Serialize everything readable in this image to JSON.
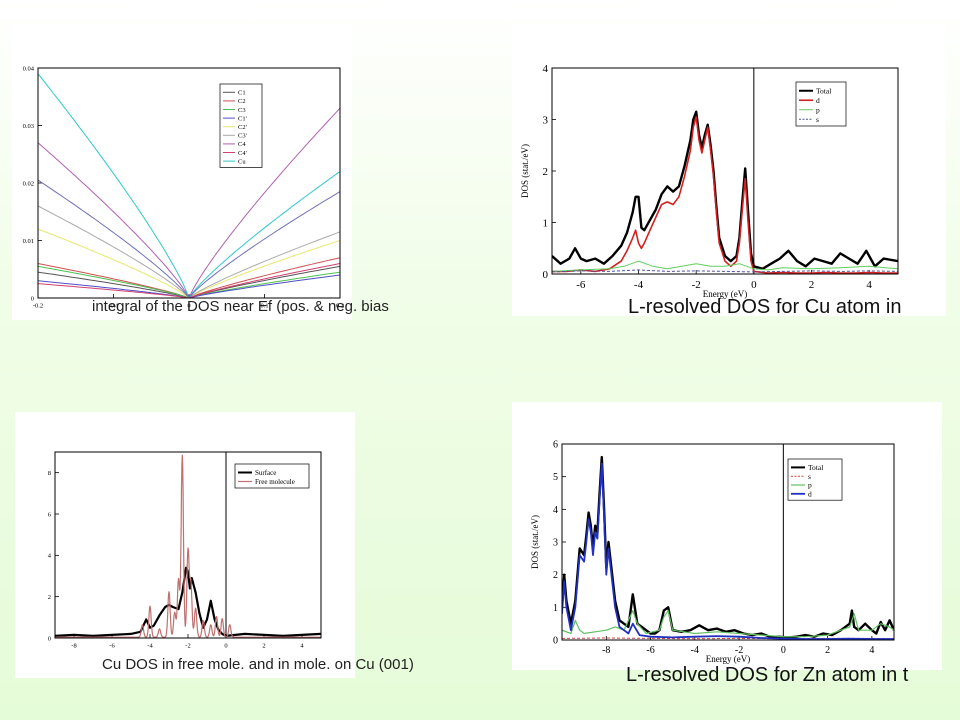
{
  "captions": {
    "top_left": "integral of the DOS near Ef (pos. & neg. bias",
    "top_right": "L-resolved DOS for Cu atom in",
    "bottom_left": "Cu DOS in free mole. and in mole. on Cu (001)",
    "bottom_right": "L-resolved DOS for Zn atom in t"
  },
  "chart_data": [
    {
      "id": "integral",
      "type": "line",
      "title": "",
      "xlabel": "",
      "ylabel": "",
      "xlim": [
        -0.2,
        0.2
      ],
      "ylim": [
        0,
        0.04
      ],
      "xticks": [
        -0.2,
        -0.1,
        0,
        0.1,
        0.2
      ],
      "xtick_labels": [
        "-0.2",
        "-0.1",
        "0",
        "0.1",
        "0.2"
      ],
      "yticks": [
        0,
        0.01,
        0.02,
        0.03,
        0.04
      ],
      "ytick_labels": [
        "0",
        "0.01",
        "0.02",
        "0.03",
        "0.04"
      ],
      "legend_position": "top-right",
      "series": [
        {
          "name": "C1",
          "color": "#555555",
          "left": 0.0045,
          "right": 0.0055
        },
        {
          "name": "C2",
          "color": "#d05050",
          "left": 0.006,
          "right": 0.007
        },
        {
          "name": "C3",
          "color": "#50c050",
          "left": 0.0055,
          "right": 0.0045
        },
        {
          "name": "C1'",
          "color": "#4f4fc8",
          "left": 0.003,
          "right": 0.004
        },
        {
          "name": "C2'",
          "color": "#e8e870",
          "left": 0.012,
          "right": 0.01
        },
        {
          "name": "C3'",
          "color": "#aaaaaa",
          "left": 0.016,
          "right": 0.0115
        },
        {
          "name": "C4",
          "color": "#b060b0",
          "left": 0.027,
          "right": 0.033
        },
        {
          "name": "C4'",
          "color": "#d04070",
          "left": 0.0025,
          "right": 0.006
        },
        {
          "name": "Cu",
          "color": "#30c8c8",
          "left": 0.039,
          "right": 0.022
        },
        {
          "name": "",
          "color": "#7070b8",
          "left": 0.0205,
          "right": 0.0185
        }
      ]
    },
    {
      "id": "cu-ldos",
      "type": "line",
      "title": "",
      "xlabel": "Energy (eV)",
      "ylabel": "DOS (stat./eV)",
      "xlim": [
        -7,
        5
      ],
      "ylim": [
        0,
        4
      ],
      "xticks": [
        -6,
        -4,
        -2,
        0,
        2,
        4
      ],
      "xtick_labels": [
        "-6",
        "-4",
        "-2",
        "0",
        "2",
        "4"
      ],
      "yticks": [
        0,
        1,
        2,
        3,
        4
      ],
      "ytick_labels": [
        "0",
        "1",
        "2",
        "3",
        "4"
      ],
      "fermi_level": 0,
      "legend_position": "top-right",
      "series": [
        {
          "name": "Total",
          "color": "#000000",
          "width": 2.4,
          "x": [
            -7,
            -6.7,
            -6.4,
            -6.2,
            -6,
            -5.8,
            -5.5,
            -5.2,
            -4.9,
            -4.6,
            -4.4,
            -4.2,
            -4.1,
            -4.0,
            -3.9,
            -3.8,
            -3.6,
            -3.4,
            -3.2,
            -3.0,
            -2.8,
            -2.6,
            -2.4,
            -2.2,
            -2.1,
            -2.0,
            -1.9,
            -1.8,
            -1.7,
            -1.6,
            -1.5,
            -1.4,
            -1.3,
            -1.2,
            -1.0,
            -0.8,
            -0.6,
            -0.5,
            -0.4,
            -0.3,
            -0.2,
            -0.1,
            0,
            0.3,
            0.6,
            0.9,
            1.2,
            1.5,
            1.8,
            2.1,
            2.4,
            2.7,
            3.0,
            3.3,
            3.6,
            3.9,
            4.2,
            4.5,
            5
          ],
          "y": [
            0.35,
            0.2,
            0.3,
            0.5,
            0.3,
            0.25,
            0.3,
            0.2,
            0.35,
            0.55,
            0.8,
            1.2,
            1.5,
            1.5,
            0.9,
            0.85,
            1.05,
            1.25,
            1.55,
            1.7,
            1.6,
            1.7,
            2.1,
            2.6,
            3.0,
            3.15,
            2.7,
            2.45,
            2.7,
            2.9,
            2.5,
            2.0,
            1.3,
            0.7,
            0.35,
            0.25,
            0.35,
            0.7,
            1.4,
            2.05,
            1.2,
            0.4,
            0.15,
            0.1,
            0.2,
            0.3,
            0.45,
            0.25,
            0.15,
            0.3,
            0.25,
            0.2,
            0.4,
            0.3,
            0.2,
            0.45,
            0.15,
            0.3,
            0.25
          ]
        },
        {
          "name": "d",
          "color": "#d42020",
          "width": 1.6,
          "x": [
            -7,
            -6.5,
            -6,
            -5.5,
            -5,
            -4.6,
            -4.4,
            -4.2,
            -4.1,
            -4.0,
            -3.9,
            -3.8,
            -3.6,
            -3.4,
            -3.2,
            -3.0,
            -2.8,
            -2.6,
            -2.4,
            -2.2,
            -2.1,
            -2.0,
            -1.9,
            -1.8,
            -1.7,
            -1.6,
            -1.5,
            -1.4,
            -1.3,
            -1.2,
            -1.0,
            -0.8,
            -0.6,
            -0.5,
            -0.4,
            -0.3,
            -0.2,
            -0.1,
            0,
            0.5,
            1,
            1.5,
            2,
            2.5,
            3,
            3.5,
            4,
            4.5,
            5
          ],
          "y": [
            0.05,
            0.05,
            0.08,
            0.05,
            0.1,
            0.25,
            0.45,
            0.7,
            0.85,
            0.6,
            0.5,
            0.6,
            0.85,
            1.1,
            1.35,
            1.4,
            1.35,
            1.5,
            1.9,
            2.4,
            2.85,
            3.05,
            2.6,
            2.35,
            2.6,
            2.85,
            2.4,
            1.9,
            1.2,
            0.6,
            0.25,
            0.15,
            0.25,
            0.6,
            1.25,
            1.85,
            1.0,
            0.25,
            0.05,
            0.02,
            0.03,
            0.02,
            0.02,
            0.03,
            0.02,
            0.02,
            0.03,
            0.02,
            0.02
          ]
        },
        {
          "name": "p",
          "color": "#60d060",
          "width": 1.0,
          "x": [
            -7,
            -6,
            -5,
            -4.5,
            -4,
            -3.5,
            -3,
            -2.5,
            -2,
            -1.5,
            -1,
            -0.5,
            0,
            0.5,
            1,
            2,
            3,
            4,
            5
          ],
          "y": [
            0.05,
            0.08,
            0.1,
            0.15,
            0.25,
            0.15,
            0.1,
            0.15,
            0.2,
            0.15,
            0.15,
            0.2,
            0.1,
            0.08,
            0.12,
            0.1,
            0.12,
            0.15,
            0.1
          ]
        },
        {
          "name": "s",
          "color": "#5050a0",
          "width": 1.0,
          "dash": true,
          "x": [
            -7,
            -6,
            -5,
            -4,
            -3,
            -2,
            -1,
            0,
            1,
            2,
            3,
            4,
            5
          ],
          "y": [
            0.04,
            0.06,
            0.05,
            0.08,
            0.05,
            0.06,
            0.05,
            0.04,
            0.05,
            0.06,
            0.05,
            0.06,
            0.05
          ]
        }
      ]
    },
    {
      "id": "free-vs-surface",
      "type": "line",
      "title": "",
      "xlabel": "",
      "ylabel": "",
      "xlim": [
        -9,
        5
      ],
      "ylim": [
        0,
        9
      ],
      "xticks": [
        -8,
        -6,
        -4,
        -2,
        0,
        2,
        4
      ],
      "xtick_labels": [
        "-8",
        "-6",
        "-4",
        "-2",
        "0",
        "2",
        "4"
      ],
      "yticks": [
        0,
        2,
        4,
        6,
        8
      ],
      "ytick_labels": [
        "0",
        "2",
        "4",
        "6",
        "8"
      ],
      "fermi_level": 0,
      "legend_position": "top-right",
      "series": [
        {
          "name": "Surface",
          "color": "#000000",
          "width": 2.2,
          "x": [
            -9,
            -8,
            -7,
            -6,
            -5,
            -4.5,
            -4.2,
            -4.0,
            -3.8,
            -3.5,
            -3.2,
            -3.0,
            -2.8,
            -2.5,
            -2.3,
            -2.1,
            -2.0,
            -1.9,
            -1.8,
            -1.6,
            -1.4,
            -1.2,
            -1.0,
            -0.8,
            -0.6,
            -0.4,
            -0.2,
            0,
            0.5,
            1,
            2,
            3,
            4,
            5
          ],
          "y": [
            0.1,
            0.15,
            0.1,
            0.15,
            0.2,
            0.3,
            0.9,
            0.5,
            0.6,
            1.1,
            1.5,
            1.6,
            1.5,
            1.4,
            2.2,
            3.4,
            3.2,
            2.4,
            2.9,
            2.2,
            1.2,
            0.5,
            0.9,
            1.8,
            0.9,
            0.4,
            0.2,
            0.1,
            0.15,
            0.2,
            0.15,
            0.1,
            0.15,
            0.2
          ]
        },
        {
          "name": "Free molecule",
          "color": "#c07070",
          "width": 1.2,
          "peaks": [
            [
              -4.4,
              0.6
            ],
            [
              -4.0,
              1.5
            ],
            [
              -3.5,
              0.4
            ],
            [
              -3.0,
              2.2
            ],
            [
              -2.7,
              1.2
            ],
            [
              -2.5,
              2.8
            ],
            [
              -2.3,
              8.8
            ],
            [
              -2.0,
              4.2
            ],
            [
              -1.85,
              2.6
            ],
            [
              -1.6,
              1.4
            ],
            [
              -1.2,
              0.8
            ],
            [
              -0.8,
              0.6
            ],
            [
              -0.5,
              1.0
            ],
            [
              -0.2,
              0.9
            ],
            [
              0.2,
              0.6
            ]
          ]
        }
      ]
    },
    {
      "id": "zn-ldos",
      "type": "line",
      "title": "",
      "xlabel": "Energy (eV)",
      "ylabel": "DOS (stat./eV)",
      "xlim": [
        -10,
        5
      ],
      "ylim": [
        0,
        6
      ],
      "xticks": [
        -8,
        -6,
        -4,
        -2,
        0,
        2,
        4
      ],
      "xtick_labels": [
        "-8",
        "-6",
        "-4",
        "-2",
        "0",
        "2",
        "4"
      ],
      "yticks": [
        0,
        1,
        2,
        3,
        4,
        5,
        6
      ],
      "ytick_labels": [
        "0",
        "1",
        "2",
        "3",
        "4",
        "5",
        "6"
      ],
      "fermi_level": 0,
      "legend_position": "top-right",
      "series": [
        {
          "name": "Total",
          "color": "#000000",
          "width": 2.4,
          "x": [
            -10,
            -9.9,
            -9.8,
            -9.6,
            -9.4,
            -9.2,
            -9.0,
            -8.9,
            -8.8,
            -8.7,
            -8.6,
            -8.5,
            -8.4,
            -8.3,
            -8.2,
            -8.1,
            -8.0,
            -7.9,
            -7.8,
            -7.6,
            -7.4,
            -7.2,
            -7.0,
            -6.8,
            -6.6,
            -6.4,
            -6.2,
            -6.0,
            -5.8,
            -5.6,
            -5.4,
            -5.2,
            -5.0,
            -4.6,
            -4.2,
            -3.8,
            -3.4,
            -3.0,
            -2.6,
            -2.2,
            -1.8,
            -1.4,
            -1.0,
            -0.6,
            -0.2,
            0.2,
            0.6,
            1.0,
            1.4,
            1.8,
            2.2,
            2.6,
            3.0,
            3.1,
            3.2,
            3.4,
            3.7,
            4.0,
            4.2,
            4.4,
            4.6,
            4.8,
            5.0
          ],
          "y": [
            1.0,
            2.0,
            1.2,
            0.5,
            1.2,
            2.8,
            2.6,
            3.2,
            3.9,
            3.5,
            2.8,
            3.5,
            3.3,
            4.5,
            5.6,
            4.0,
            2.2,
            3.0,
            2.4,
            1.2,
            0.6,
            0.5,
            0.4,
            1.4,
            0.5,
            0.4,
            0.3,
            0.2,
            0.2,
            0.3,
            0.9,
            1.0,
            0.3,
            0.25,
            0.3,
            0.45,
            0.3,
            0.35,
            0.25,
            0.3,
            0.2,
            0.15,
            0.2,
            0.1,
            0.1,
            0.08,
            0.1,
            0.15,
            0.1,
            0.2,
            0.15,
            0.3,
            0.5,
            0.9,
            0.4,
            0.3,
            0.5,
            0.3,
            0.2,
            0.55,
            0.3,
            0.6,
            0.3
          ]
        },
        {
          "name": "s",
          "color": "#d04040",
          "width": 1.0,
          "dash": true,
          "x": [
            -10,
            -8,
            -6,
            -4,
            -2,
            0,
            2,
            4,
            5
          ],
          "y": [
            0.05,
            0.06,
            0.05,
            0.04,
            0.05,
            0.04,
            0.05,
            0.05,
            0.04
          ]
        },
        {
          "name": "p",
          "color": "#60c060",
          "width": 1.2,
          "x": [
            -10,
            -9.6,
            -9.4,
            -9.2,
            -9.0,
            -8.5,
            -8.0,
            -7.6,
            -7.2,
            -6.8,
            -6.6,
            -6.2,
            -5.6,
            -5.4,
            -5.2,
            -5.0,
            -4.0,
            -3.0,
            -2.0,
            -1.0,
            0,
            1,
            2,
            3,
            3.2,
            3.4,
            4,
            4.4,
            4.8,
            5
          ],
          "y": [
            0.3,
            0.2,
            0.6,
            0.3,
            0.2,
            0.25,
            0.3,
            0.4,
            0.3,
            0.9,
            0.5,
            0.2,
            0.3,
            0.7,
            0.9,
            0.3,
            0.2,
            0.25,
            0.2,
            0.15,
            0.1,
            0.1,
            0.15,
            0.4,
            0.8,
            0.3,
            0.3,
            0.5,
            0.4,
            0.3
          ]
        },
        {
          "name": "d",
          "color": "#2030c0",
          "width": 1.8,
          "x": [
            -10,
            -9.9,
            -9.8,
            -9.6,
            -9.4,
            -9.2,
            -9.0,
            -8.9,
            -8.8,
            -8.7,
            -8.6,
            -8.5,
            -8.4,
            -8.3,
            -8.2,
            -8.1,
            -8.0,
            -7.9,
            -7.8,
            -7.6,
            -7.4,
            -7.2,
            -7.0,
            -6.8,
            -6.5,
            -6.0,
            -5.0,
            -4.0,
            -3.0,
            -2.0,
            -1.0,
            0,
            1,
            2,
            3,
            4,
            5
          ],
          "y": [
            0.8,
            1.8,
            1.0,
            0.3,
            1.0,
            2.6,
            2.4,
            3.0,
            3.7,
            3.3,
            2.6,
            3.3,
            3.1,
            4.3,
            5.4,
            3.8,
            2.0,
            2.8,
            2.2,
            1.0,
            0.4,
            0.3,
            0.2,
            0.5,
            0.15,
            0.1,
            0.08,
            0.1,
            0.12,
            0.1,
            0.06,
            0.04,
            0.03,
            0.03,
            0.04,
            0.03,
            0.03
          ]
        }
      ]
    }
  ]
}
